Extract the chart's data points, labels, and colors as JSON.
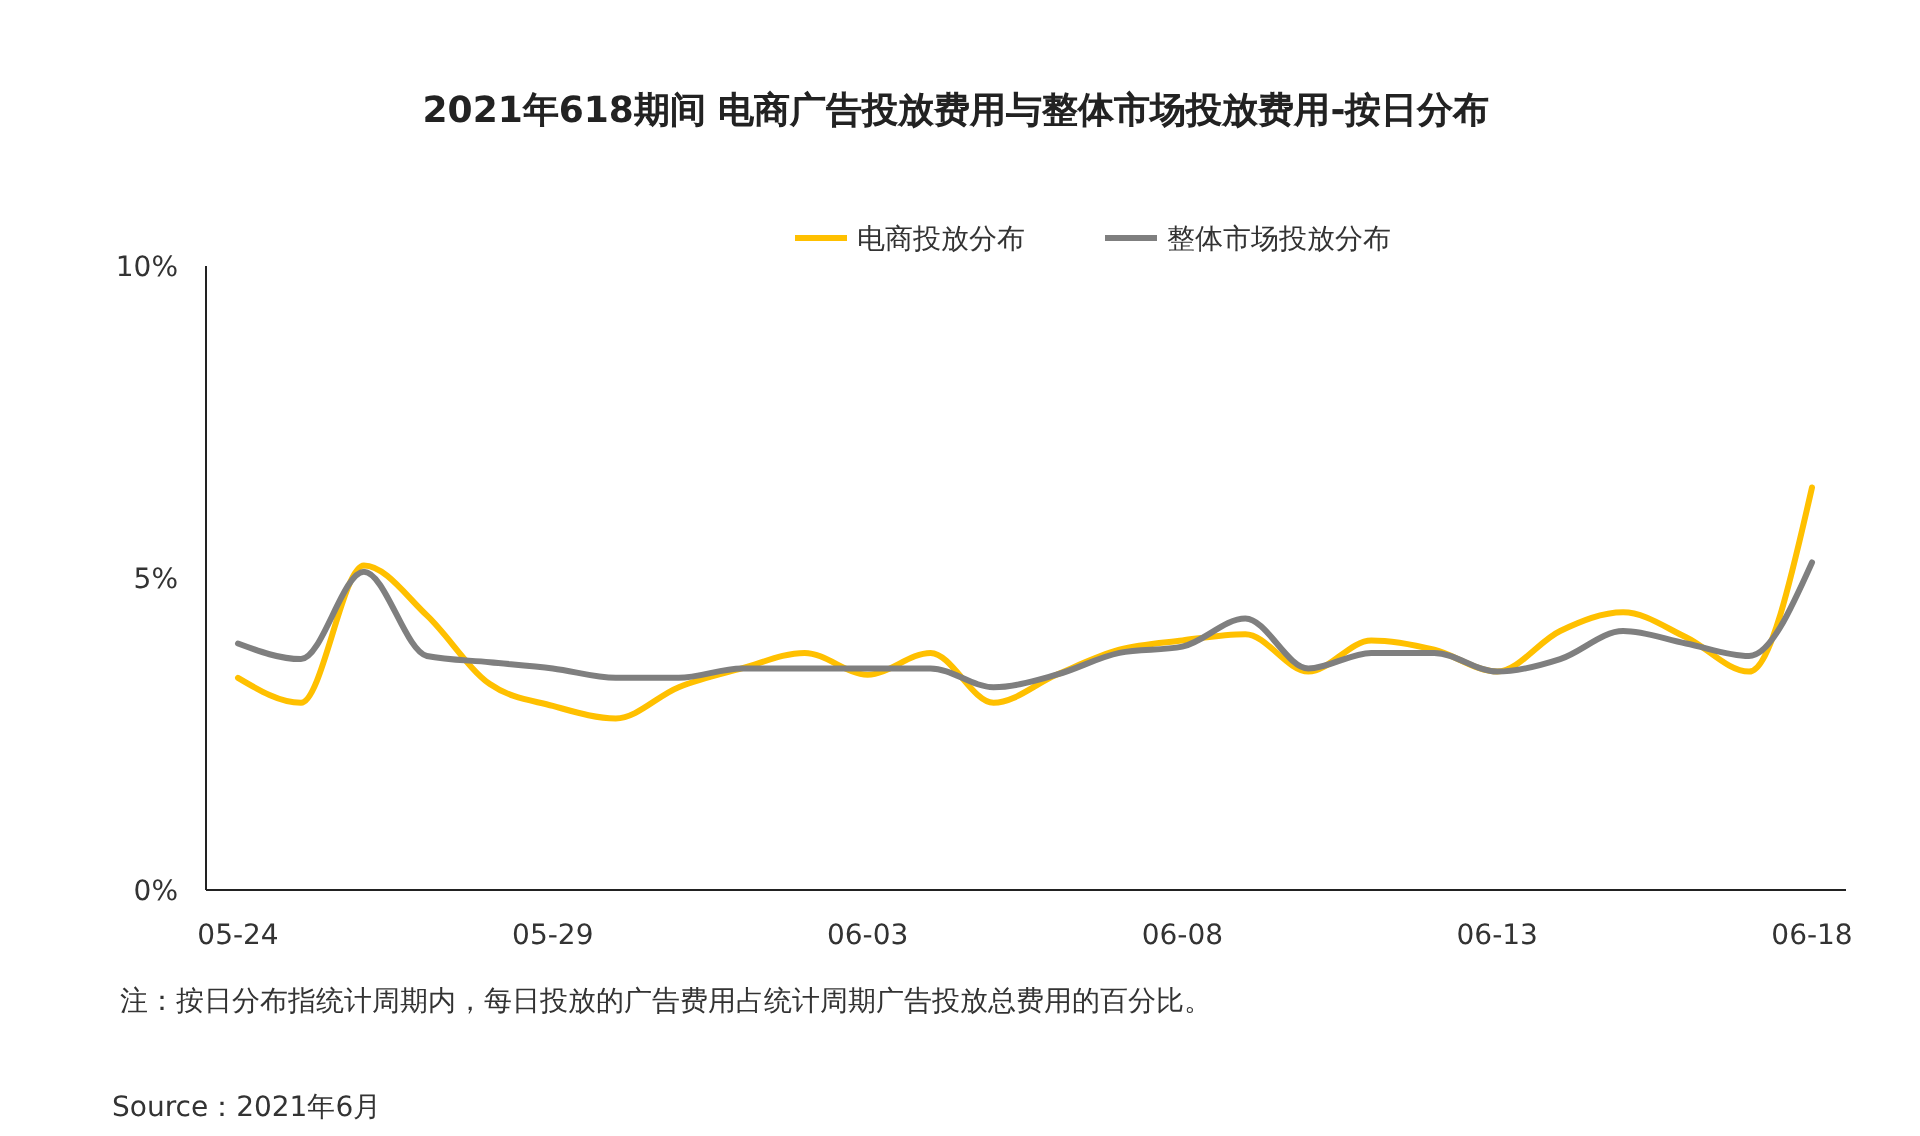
{
  "chart_data": {
    "type": "line",
    "title": "2021年618期间 电商广告投放费用与整体市场投放费用-按日分布",
    "categories": [
      "05-24",
      null,
      null,
      null,
      null,
      "05-29",
      null,
      null,
      null,
      null,
      "06-03",
      null,
      null,
      null,
      null,
      "06-08",
      null,
      null,
      null,
      null,
      "06-13",
      null,
      null,
      null,
      null,
      "06-18"
    ],
    "series": [
      {
        "name": "电商投放分布",
        "color": "#ffc000",
        "values": [
          3.4,
          3.0,
          5.2,
          4.4,
          3.3,
          2.95,
          2.75,
          3.25,
          3.55,
          3.8,
          3.45,
          3.8,
          3.0,
          3.45,
          3.85,
          4.0,
          4.1,
          3.5,
          4.0,
          3.85,
          3.5,
          4.15,
          4.45,
          4.05,
          3.5,
          6.45
        ]
      },
      {
        "name": "整体市场投放分布",
        "color": "#7f7f7f",
        "values": [
          3.95,
          3.7,
          5.1,
          3.75,
          3.65,
          3.55,
          3.4,
          3.4,
          3.55,
          3.55,
          3.55,
          3.55,
          3.25,
          3.45,
          3.8,
          3.9,
          4.35,
          3.55,
          3.8,
          3.8,
          3.5,
          3.7,
          4.15,
          3.95,
          3.75,
          5.25
        ]
      }
    ],
    "ylim": [
      0,
      10
    ],
    "yticks": [
      {
        "value": 0,
        "label": "0%"
      },
      {
        "value": 5,
        "label": "5%"
      },
      {
        "value": 10,
        "label": "10%"
      }
    ],
    "legend": "top",
    "marker": "none",
    "line_style": "solid",
    "annotations": [
      "注：按日分布指统计周期内，每日投放的广告费用占统计周期广告投放总费用的百分比。",
      "Source：2021年6月"
    ]
  }
}
